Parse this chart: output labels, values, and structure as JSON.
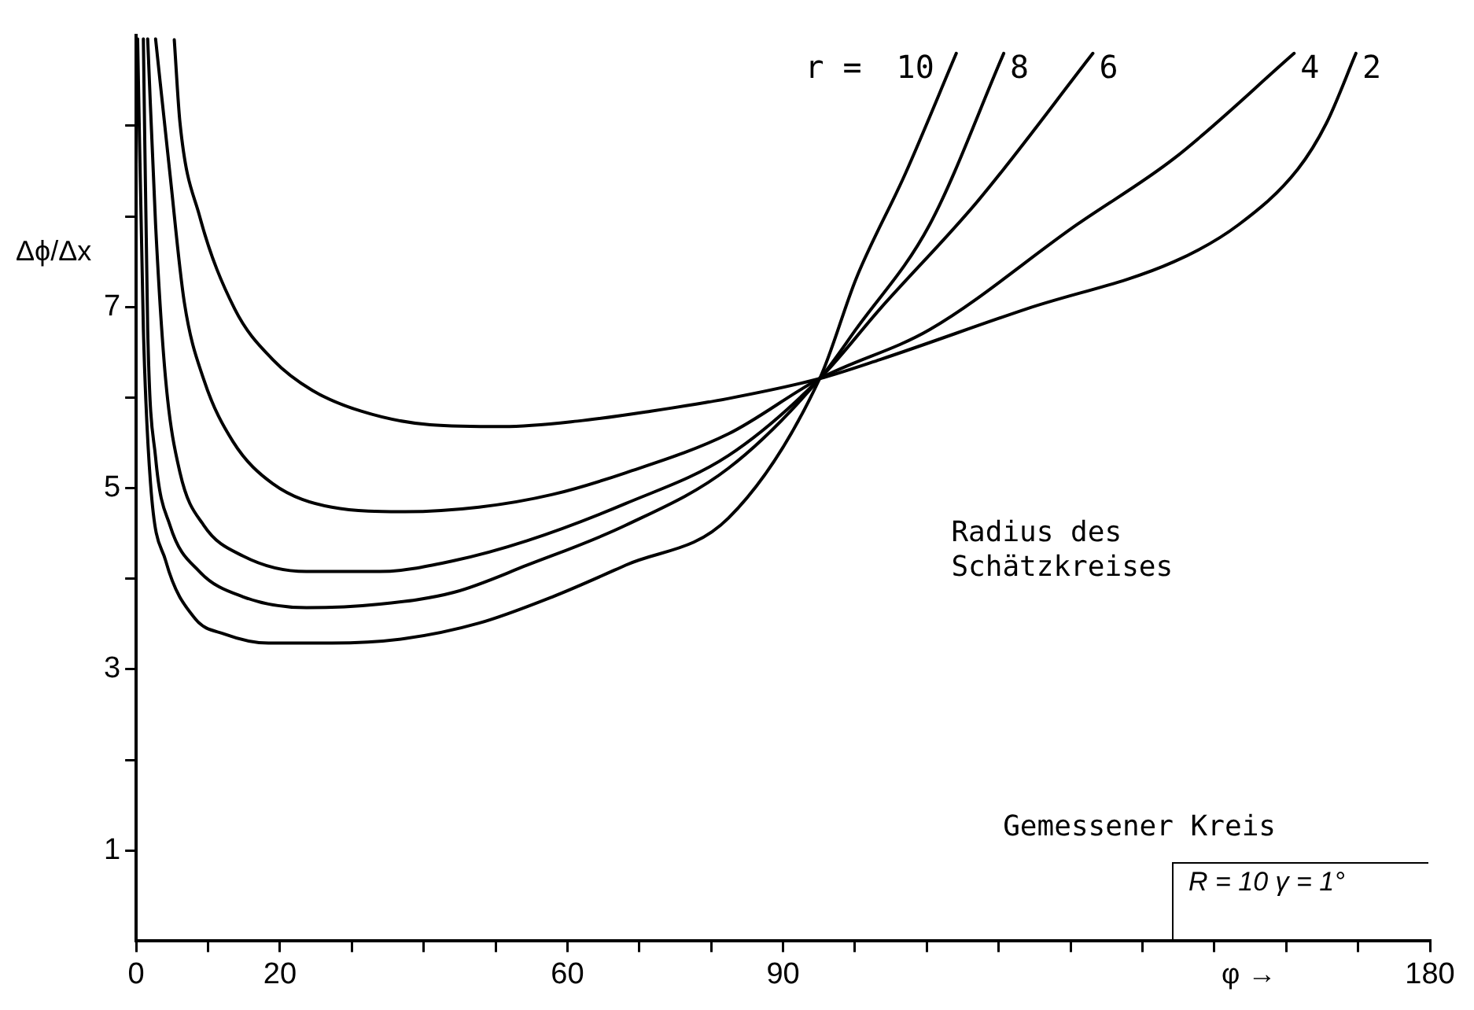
{
  "chart_data": {
    "type": "line",
    "xlabel": "φ →",
    "ylabel": "Δϕ/Δx",
    "legend_title": "r =",
    "xlim": [
      0,
      180
    ],
    "ylim": [
      0,
      10
    ],
    "xticks": [
      0,
      {
        "value": 10,
        "label": null
      },
      20,
      {
        "value": 30,
        "label": null
      },
      {
        "value": 40,
        "label": null
      },
      {
        "value": 50,
        "label": null
      },
      60,
      {
        "value": 70,
        "label": null
      },
      {
        "value": 80,
        "label": null
      },
      90,
      {
        "value": 100,
        "label": null
      },
      {
        "value": 110,
        "label": null
      },
      {
        "value": 120,
        "label": null
      },
      {
        "value": 130,
        "label": null
      },
      {
        "value": 140,
        "label": null
      },
      {
        "value": 150,
        "label": null
      },
      {
        "value": 160,
        "label": null
      },
      {
        "value": 170,
        "label": null
      },
      180
    ],
    "yticks": [
      1,
      {
        "value": 2,
        "label": null
      },
      3,
      {
        "value": 4,
        "label": null
      },
      5,
      {
        "value": 6,
        "label": null
      },
      7,
      {
        "value": 8,
        "label": null
      },
      {
        "value": 9,
        "label": null
      }
    ],
    "grid": false,
    "legend": false,
    "marker": "none",
    "line_style": "solid",
    "series": [
      {
        "name": "10",
        "color": "#000000",
        "x": [
          0.2,
          1.0,
          2.0,
          4.1,
          8.2,
          12.3,
          18.4,
          27.2,
          37.4,
          47.7,
          57.9,
          68.1,
          82.4,
          95.1,
          100.2,
          107.0,
          114.1
        ],
        "values": [
          9.96,
          6.76,
          5.05,
          4.2,
          3.56,
          3.39,
          3.29,
          3.29,
          3.34,
          3.51,
          3.8,
          4.15,
          4.67,
          6.21,
          7.32,
          8.47,
          9.8
        ]
      },
      {
        "name": "8",
        "color": "#000000",
        "x": [
          1.0,
          1.6,
          2.7,
          4.7,
          8.8,
          14.9,
          23.7,
          33.9,
          44.2,
          54.4,
          68.1,
          82.4,
          95.1,
          100.2,
          110.4,
          120.7
        ],
        "values": [
          9.96,
          6.76,
          5.34,
          4.59,
          4.08,
          3.8,
          3.68,
          3.72,
          3.85,
          4.15,
          4.59,
          5.22,
          6.21,
          6.76,
          7.91,
          9.8
        ]
      },
      {
        "name": "6",
        "color": "#000000",
        "x": [
          1.6,
          2.7,
          4.1,
          6.1,
          9.4,
          14.9,
          23.7,
          33.9,
          44.2,
          54.4,
          68.1,
          82.4,
          95.1,
          103.5,
          117.2,
          133.1
        ],
        "values": [
          9.96,
          7.91,
          6.2,
          5.17,
          4.59,
          4.25,
          4.08,
          4.08,
          4.2,
          4.42,
          4.83,
          5.36,
          6.21,
          6.98,
          8.18,
          9.8
        ]
      },
      {
        "name": "4",
        "color": "#000000",
        "x": [
          2.7,
          4.7,
          6.7,
          9.4,
          13.5,
          19.0,
          27.2,
          37.4,
          47.7,
          57.9,
          68.1,
          82.4,
          95.1,
          110.4,
          130.9,
          144.4,
          161.1
        ],
        "values": [
          9.96,
          8.47,
          7.05,
          6.2,
          5.51,
          5.05,
          4.79,
          4.74,
          4.79,
          4.93,
          5.17,
          5.6,
          6.21,
          6.75,
          7.91,
          8.64,
          9.8
        ]
      },
      {
        "name": "2",
        "color": "#000000",
        "x": [
          5.3,
          6.1,
          8.8,
          13.7,
          19.0,
          24.5,
          31.3,
          40.9,
          51.1,
          61.4,
          71.6,
          82.4,
          95.1,
          103.5,
          123.9,
          144.4,
          153.4,
          161.6,
          165.6,
          169.7
        ],
        "values": [
          9.95,
          9.03,
          8.01,
          6.98,
          6.42,
          6.08,
          5.85,
          5.7,
          5.68,
          5.74,
          5.85,
          5.99,
          6.21,
          6.42,
          6.98,
          7.5,
          7.91,
          8.52,
          9.03,
          9.8
        ]
      }
    ],
    "annotations": [
      "Radius des Schätzkreises",
      "Gemessener Kreis",
      "R = 10   γ = 1°"
    ]
  }
}
